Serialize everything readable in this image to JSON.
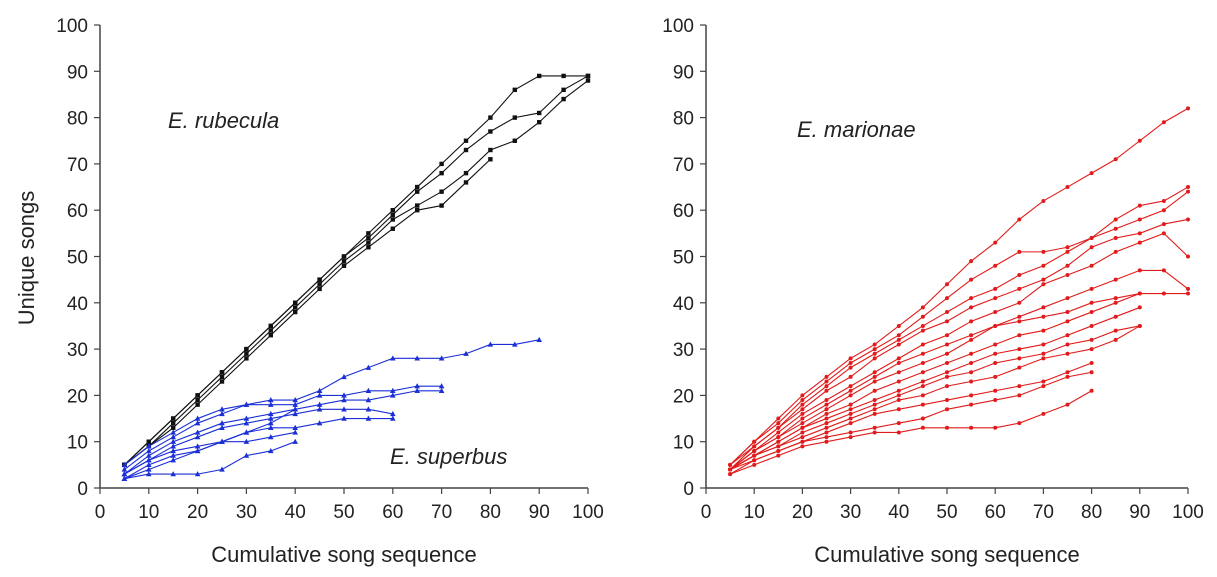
{
  "figure": {
    "ylabel": "Unique songs"
  },
  "chart_data": [
    {
      "type": "line",
      "xlabel": "Cumulative song sequence",
      "ylabel": "Unique songs",
      "xlim": [
        0,
        100
      ],
      "ylim": [
        0,
        100
      ],
      "xticks": [
        0,
        10,
        20,
        30,
        40,
        50,
        60,
        70,
        80,
        90,
        100
      ],
      "yticks": [
        0,
        10,
        20,
        30,
        40,
        50,
        60,
        70,
        80,
        90,
        100
      ],
      "annotations": [
        "E. rubecula",
        "E. superbus"
      ],
      "colors": {
        "E. rubecula": "#111111",
        "E. superbus": "#1a2fd6"
      },
      "series": [
        {
          "group": "E. rubecula",
          "marker": "square",
          "x": [
            5,
            10,
            15,
            20,
            25,
            30,
            35,
            40,
            45,
            50,
            55,
            60,
            65,
            70,
            75,
            80,
            85,
            90,
            95,
            100
          ],
          "y": [
            5,
            10,
            15,
            20,
            25,
            30,
            35,
            40,
            45,
            50,
            55,
            60,
            65,
            70,
            75,
            80,
            86,
            89,
            89,
            89
          ]
        },
        {
          "group": "E. rubecula",
          "marker": "square",
          "x": [
            5,
            10,
            15,
            20,
            25,
            30,
            35,
            40,
            45,
            50,
            55,
            60,
            65,
            70,
            75,
            80,
            85,
            90,
            95,
            100
          ],
          "y": [
            5,
            10,
            15,
            20,
            25,
            30,
            35,
            40,
            45,
            50,
            54,
            59,
            64,
            68,
            73,
            77,
            80,
            81,
            86,
            89
          ]
        },
        {
          "group": "E. rubecula",
          "marker": "square",
          "x": [
            5,
            10,
            15,
            20,
            25,
            30,
            35,
            40,
            45,
            50,
            55,
            60,
            65,
            70,
            75,
            80,
            85,
            90,
            95,
            100
          ],
          "y": [
            5,
            9,
            14,
            19,
            24,
            29,
            34,
            39,
            44,
            49,
            53,
            58,
            61,
            64,
            68,
            73,
            75,
            79,
            84,
            88
          ]
        },
        {
          "group": "E. rubecula",
          "marker": "square",
          "x": [
            5,
            10,
            15,
            20,
            25,
            30,
            35,
            40,
            45,
            50,
            55,
            60,
            65,
            70,
            75,
            80
          ],
          "y": [
            5,
            9,
            13,
            18,
            23,
            28,
            33,
            38,
            43,
            48,
            52,
            56,
            60,
            61,
            66,
            71
          ]
        },
        {
          "group": "E. superbus",
          "marker": "triangle",
          "x": [
            5,
            10,
            15,
            20,
            25,
            30,
            35,
            40,
            45,
            50,
            55,
            60,
            65,
            70,
            75,
            80,
            85,
            90
          ],
          "y": [
            5,
            9,
            12,
            15,
            17,
            18,
            19,
            19,
            21,
            24,
            26,
            28,
            28,
            28,
            29,
            31,
            31,
            32
          ]
        },
        {
          "group": "E. superbus",
          "marker": "triangle",
          "x": [
            5,
            10,
            15,
            20,
            25,
            30,
            35,
            40,
            45,
            50,
            55,
            60,
            65,
            70
          ],
          "y": [
            4,
            8,
            11,
            14,
            16,
            18,
            18,
            18,
            20,
            20,
            21,
            21,
            22,
            22
          ]
        },
        {
          "group": "E. superbus",
          "marker": "triangle",
          "x": [
            5,
            10,
            15,
            20,
            25,
            30,
            35,
            40,
            45,
            50,
            55,
            60,
            65,
            70
          ],
          "y": [
            3,
            7,
            10,
            12,
            14,
            15,
            16,
            17,
            18,
            19,
            19,
            20,
            21,
            21
          ]
        },
        {
          "group": "E. superbus",
          "marker": "triangle",
          "x": [
            5,
            10,
            15,
            20,
            25,
            30,
            35,
            40,
            45,
            50,
            55,
            60
          ],
          "y": [
            3,
            6,
            9,
            11,
            13,
            14,
            15,
            16,
            17,
            17,
            17,
            16
          ]
        },
        {
          "group": "E. superbus",
          "marker": "triangle",
          "x": [
            5,
            10,
            15,
            20,
            25,
            30,
            35,
            40,
            45,
            50,
            55,
            60
          ],
          "y": [
            2,
            5,
            7,
            8,
            10,
            12,
            13,
            13,
            14,
            15,
            15,
            15
          ]
        },
        {
          "group": "E. superbus",
          "marker": "triangle",
          "x": [
            5,
            10,
            15,
            20,
            25,
            30,
            35,
            40
          ],
          "y": [
            2,
            4,
            6,
            8,
            10,
            12,
            14,
            17
          ]
        },
        {
          "group": "E. superbus",
          "marker": "triangle",
          "x": [
            5,
            10,
            15,
            20,
            25,
            30,
            35,
            40
          ],
          "y": [
            3,
            6,
            8,
            9,
            10,
            10,
            11,
            12
          ]
        },
        {
          "group": "E. superbus",
          "marker": "triangle",
          "x": [
            5,
            10,
            15,
            20,
            25,
            30,
            35,
            40
          ],
          "y": [
            2,
            3,
            3,
            3,
            4,
            7,
            8,
            10
          ]
        }
      ]
    },
    {
      "type": "line",
      "xlabel": "Cumulative song sequence",
      "ylabel": "",
      "xlim": [
        0,
        100
      ],
      "ylim": [
        0,
        100
      ],
      "xticks": [
        0,
        10,
        20,
        30,
        40,
        50,
        60,
        70,
        80,
        90,
        100
      ],
      "yticks": [
        0,
        10,
        20,
        30,
        40,
        50,
        60,
        70,
        80,
        90,
        100
      ],
      "annotations": [
        "E. marionae"
      ],
      "colors": {
        "E. marionae": "#e11b1b"
      },
      "series": [
        {
          "group": "E. marionae",
          "marker": "circle",
          "x": [
            5,
            10,
            15,
            20,
            25,
            30,
            35,
            40,
            45,
            50,
            55,
            60,
            65,
            70,
            75,
            80,
            85,
            90,
            95,
            100
          ],
          "y": [
            5,
            10,
            15,
            20,
            24,
            28,
            31,
            35,
            39,
            44,
            49,
            53,
            58,
            62,
            65,
            68,
            71,
            75,
            79,
            82
          ]
        },
        {
          "group": "E. marionae",
          "marker": "circle",
          "x": [
            5,
            10,
            15,
            20,
            25,
            30,
            35,
            40,
            45,
            50,
            55,
            60,
            65,
            70,
            75,
            80,
            85,
            90,
            95,
            100
          ],
          "y": [
            5,
            10,
            14,
            19,
            23,
            27,
            30,
            33,
            37,
            41,
            45,
            48,
            51,
            51,
            52,
            54,
            58,
            61,
            62,
            65
          ]
        },
        {
          "group": "E. marionae",
          "marker": "circle",
          "x": [
            5,
            10,
            15,
            20,
            25,
            30,
            35,
            40,
            45,
            50,
            55,
            60,
            65,
            70,
            75,
            80,
            85,
            90,
            95,
            100
          ],
          "y": [
            5,
            9,
            13,
            18,
            22,
            26,
            29,
            32,
            35,
            38,
            41,
            43,
            46,
            48,
            51,
            54,
            56,
            58,
            60,
            64
          ]
        },
        {
          "group": "E. marionae",
          "marker": "circle",
          "x": [
            5,
            10,
            15,
            20,
            25,
            30,
            35,
            40,
            45,
            50,
            55,
            60,
            65,
            70,
            75,
            80,
            85,
            90,
            95,
            100
          ],
          "y": [
            4,
            9,
            13,
            17,
            21,
            24,
            28,
            31,
            34,
            36,
            39,
            41,
            43,
            45,
            48,
            52,
            54,
            55,
            57,
            58
          ]
        },
        {
          "group": "E. marionae",
          "marker": "circle",
          "x": [
            5,
            10,
            15,
            20,
            25,
            30,
            35,
            40,
            45,
            50,
            55,
            60,
            65,
            70,
            75,
            80,
            85,
            90,
            95,
            100
          ],
          "y": [
            4,
            8,
            12,
            16,
            19,
            22,
            25,
            28,
            31,
            33,
            36,
            38,
            40,
            44,
            46,
            48,
            51,
            53,
            55,
            50
          ]
        },
        {
          "group": "E. marionae",
          "marker": "circle",
          "x": [
            5,
            10,
            15,
            20,
            25,
            30,
            35,
            40,
            45,
            50,
            55,
            60,
            65,
            70,
            75,
            80,
            85,
            90,
            95,
            100
          ],
          "y": [
            4,
            8,
            11,
            15,
            18,
            21,
            24,
            27,
            29,
            31,
            33,
            35,
            37,
            39,
            41,
            43,
            45,
            47,
            47,
            43
          ]
        },
        {
          "group": "E. marionae",
          "marker": "circle",
          "x": [
            5,
            10,
            15,
            20,
            25,
            30,
            35,
            40,
            45,
            50,
            55,
            60,
            65,
            70,
            75,
            80,
            85,
            90,
            95,
            100
          ],
          "y": [
            4,
            8,
            11,
            14,
            17,
            20,
            23,
            25,
            27,
            29,
            32,
            35,
            36,
            37,
            38,
            40,
            41,
            42,
            42,
            42
          ]
        },
        {
          "group": "E. marionae",
          "marker": "circle",
          "x": [
            5,
            10,
            15,
            20,
            25,
            30,
            35,
            40,
            45,
            50,
            55,
            60,
            65,
            70,
            75,
            80,
            85,
            90
          ],
          "y": [
            4,
            7,
            10,
            13,
            16,
            18,
            21,
            23,
            25,
            27,
            29,
            31,
            33,
            34,
            36,
            38,
            40,
            42
          ]
        },
        {
          "group": "E. marionae",
          "marker": "circle",
          "x": [
            5,
            10,
            15,
            20,
            25,
            30,
            35,
            40,
            45,
            50,
            55,
            60,
            65,
            70,
            75,
            80,
            85,
            90
          ],
          "y": [
            4,
            7,
            10,
            13,
            15,
            17,
            19,
            21,
            23,
            25,
            27,
            29,
            30,
            31,
            33,
            35,
            37,
            39
          ]
        },
        {
          "group": "E. marionae",
          "marker": "circle",
          "x": [
            5,
            10,
            15,
            20,
            25,
            30,
            35,
            40,
            45,
            50,
            55,
            60,
            65,
            70,
            75,
            80,
            85,
            90
          ],
          "y": [
            4,
            7,
            9,
            12,
            14,
            16,
            18,
            20,
            22,
            24,
            25,
            27,
            28,
            29,
            31,
            32,
            34,
            35
          ]
        },
        {
          "group": "E. marionae",
          "marker": "circle",
          "x": [
            5,
            10,
            15,
            20,
            25,
            30,
            35,
            40,
            45,
            50,
            55,
            60,
            65,
            70,
            75,
            80,
            85,
            90
          ],
          "y": [
            4,
            7,
            9,
            11,
            13,
            15,
            17,
            19,
            20,
            22,
            23,
            24,
            26,
            28,
            29,
            30,
            32,
            35
          ]
        },
        {
          "group": "E. marionae",
          "marker": "circle",
          "x": [
            5,
            10,
            15,
            20,
            25,
            30,
            35,
            40,
            45,
            50,
            55,
            60,
            65,
            70,
            75,
            80
          ],
          "y": [
            4,
            6,
            8,
            10,
            12,
            14,
            16,
            17,
            18,
            19,
            20,
            21,
            22,
            23,
            25,
            27
          ]
        },
        {
          "group": "E. marionae",
          "marker": "circle",
          "x": [
            5,
            10,
            15,
            20,
            25,
            30,
            35,
            40,
            45,
            50,
            55,
            60,
            65,
            70,
            75,
            80
          ],
          "y": [
            3,
            6,
            8,
            10,
            11,
            12,
            13,
            14,
            15,
            17,
            18,
            19,
            20,
            22,
            24,
            25
          ]
        },
        {
          "group": "E. marionae",
          "marker": "circle",
          "x": [
            5,
            10,
            15,
            20,
            25,
            30,
            35,
            40,
            45,
            50,
            55,
            60,
            65,
            70,
            75,
            80
          ],
          "y": [
            3,
            5,
            7,
            9,
            10,
            11,
            12,
            12,
            13,
            13,
            13,
            13,
            14,
            16,
            18,
            21
          ]
        }
      ]
    }
  ]
}
